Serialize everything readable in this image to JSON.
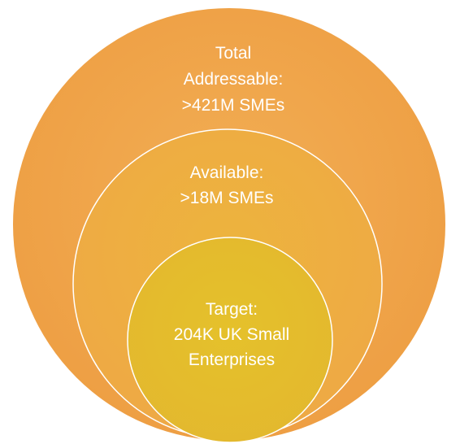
{
  "diagram": {
    "circles": [
      {
        "key": "total",
        "lines": [
          "Total",
          "Addressable:",
          ">421M SMEs"
        ],
        "fill": "#F0A54A",
        "stroke": "#FFFFFF"
      },
      {
        "key": "available",
        "lines": [
          "Available:",
          ">18M SMEs"
        ],
        "fill": "#EDAF3E",
        "stroke": "#FFFFFF"
      },
      {
        "key": "target",
        "lines": [
          "Target:",
          "204K UK Small",
          "Enterprises"
        ],
        "fill": "#E3BB2C",
        "stroke": "#FFFFFF"
      }
    ]
  }
}
